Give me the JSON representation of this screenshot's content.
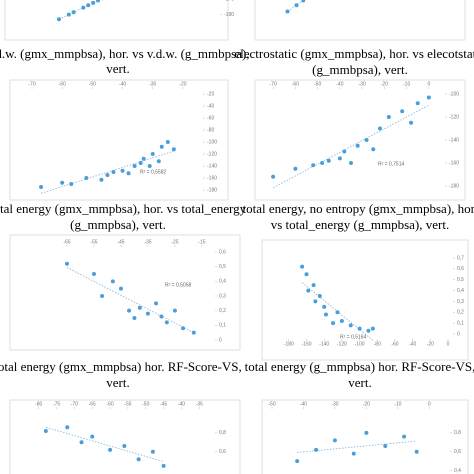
{
  "chart_data": [
    {
      "type": "scatter",
      "title": [
        "v.d.w. (gmx_mmpbsa), hor. vs v.d.w. (g_mmbpsa),",
        "vert."
      ],
      "x": [
        -52,
        -50,
        -49,
        -47,
        -46,
        -45,
        -44,
        -43,
        -42,
        -41
      ],
      "y": [
        -196,
        -190,
        -187,
        -181,
        -178,
        -175,
        -172,
        -169,
        -166,
        -163
      ],
      "xlim": [
        -60,
        -20
      ],
      "ylim": [
        -220,
        -120
      ],
      "xticks": [],
      "yticks": [
        -170,
        -190
      ],
      "color": "#4a9fd8",
      "trendline": true
    },
    {
      "type": "scatter",
      "title": [
        "electrostatic (gmx_mmpbsa), hor. vs elecotstatic",
        "(g_mmbpsa), vert."
      ],
      "x": [
        -70,
        -66,
        -63,
        -61,
        -60,
        -58,
        -57,
        -55,
        -54,
        -52
      ],
      "y": [
        -186,
        -178,
        -172,
        -168,
        -166,
        -162,
        -160,
        -156,
        -154,
        -150
      ],
      "xlim": [
        -80,
        0
      ],
      "ylim": [
        -220,
        -120
      ],
      "xticks": [],
      "yticks": [],
      "color": "#4a9fd8",
      "trendline": true
    },
    {
      "type": "scatter",
      "title": [
        "total energy (gmx_mmpbsa), hor. vs total_energy",
        "(g_mmpbsa), vert."
      ],
      "x": [
        -67,
        -60,
        -57,
        -52,
        -47,
        -45,
        -43,
        -40,
        -38,
        -36,
        -34,
        -33,
        -31,
        -30,
        -28,
        -27,
        -25,
        -23
      ],
      "y": [
        -175,
        -168,
        -170,
        -160,
        -163,
        -155,
        -150,
        -148,
        -152,
        -140,
        -135,
        -128,
        -140,
        -120,
        -132,
        -108,
        -100,
        -112
      ],
      "xlim": [
        -70,
        -15
      ],
      "ylim": [
        -180,
        -20
      ],
      "xticks": [
        -70,
        -60,
        -50,
        -40,
        -30,
        -20
      ],
      "yticks": [
        -20,
        -40,
        -60,
        -80,
        -100,
        -120,
        -140,
        -160,
        -180
      ],
      "annotation": "R² = 0,5582",
      "color": "#4a9fd8",
      "trendline": true
    },
    {
      "type": "scatter",
      "title": [
        "total energy, no entropy (gmx_mmpbsa), hor.",
        "vs total_energy (g_mmpbsa), vert."
      ],
      "x": [
        -70,
        -60,
        -52,
        -48,
        -45,
        -40,
        -38,
        -35,
        -32,
        -28,
        -25,
        -22,
        -18,
        -12,
        -8,
        -5,
        0
      ],
      "y": [
        -172,
        -165,
        -162,
        -160,
        -158,
        -156,
        -150,
        -160,
        -145,
        -140,
        -148,
        -130,
        -120,
        -115,
        -125,
        -108,
        -103
      ],
      "xlim": [
        -75,
        5
      ],
      "ylim": [
        -180,
        -100
      ],
      "xticks": [
        -70,
        -60,
        -50,
        -40,
        -30,
        -20,
        -10,
        0
      ],
      "yticks": [
        -100,
        -120,
        -140,
        -160,
        -180
      ],
      "annotation": "R² = 0,7514",
      "color": "#4a9fd8",
      "trendline": true
    },
    {
      "type": "scatter",
      "title": [
        "total energy (gmx_mmpbsa) hor. RF-Score-VS,",
        "vert."
      ],
      "x": [
        -65,
        -55,
        -52,
        -48,
        -45,
        -42,
        -40,
        -38,
        -35,
        -32,
        -30,
        -28,
        -25,
        -22,
        -18
      ],
      "y": [
        0.52,
        0.45,
        0.3,
        0.4,
        0.35,
        0.2,
        0.15,
        0.22,
        0.18,
        0.25,
        0.16,
        0.12,
        0.2,
        0.08,
        0.05
      ],
      "xlim": [
        -75,
        -12
      ],
      "ylim": [
        0,
        0.6
      ],
      "xticks": [
        -65,
        -55,
        -45,
        -35,
        -25,
        -15
      ],
      "yticks": [
        {
          "value": 0.6,
          "label": "0,6"
        },
        {
          "value": 0.5,
          "label": "0,5"
        },
        {
          "value": 0.4,
          "label": "0,4"
        },
        {
          "value": 0.3,
          "label": "0,3"
        },
        {
          "value": 0.2,
          "label": "0,2"
        },
        {
          "value": 0.1,
          "label": "0,1"
        },
        0
      ],
      "annotation": "R² = 0,5058",
      "color": "#4a9fd8",
      "trendline": true
    },
    {
      "type": "scatter",
      "title": [
        "total energy (g_mmpbsa) hor. RF-Score-VS,",
        "vert."
      ],
      "x": [
        -165,
        -160,
        -158,
        -152,
        -150,
        -145,
        -140,
        -138,
        -130,
        -125,
        -120,
        -110,
        -100,
        -90,
        -85
      ],
      "y": [
        0.62,
        0.55,
        0.4,
        0.45,
        0.3,
        0.35,
        0.25,
        0.18,
        0.1,
        0.2,
        0.12,
        0.08,
        0.05,
        0.03,
        0.05
      ],
      "xlim": [
        -190,
        0
      ],
      "ylim": [
        0,
        0.7
      ],
      "xticks": [
        -180,
        -160,
        -140,
        -120,
        -100,
        -80,
        -60,
        -40,
        -20,
        0
      ],
      "yticks": [
        {
          "value": 0.7,
          "label": "0,7"
        },
        {
          "value": 0.6,
          "label": "0,6"
        },
        {
          "value": 0.5,
          "label": "0,5"
        },
        {
          "value": 0.4,
          "label": "0,4"
        },
        {
          "value": 0.3,
          "label": "0,3"
        },
        {
          "value": 0.2,
          "label": "0,2"
        },
        {
          "value": 0.1,
          "label": "0,1"
        },
        0
      ],
      "annotation": "R² = 0,5164",
      "color": "#4a9fd8",
      "trendline": true
    },
    {
      "type": "scatter",
      "title": [],
      "x": [
        -78,
        -72,
        -68,
        -65,
        -60,
        -56,
        -52,
        -48,
        -45
      ],
      "y": [
        0.82,
        0.86,
        0.7,
        0.76,
        0.62,
        0.66,
        0.52,
        0.6,
        0.45
      ],
      "xlim": [
        -83,
        -32
      ],
      "ylim": [
        0.3,
        1
      ],
      "xticks": [
        -80,
        -75,
        -70,
        -65,
        -60,
        -55,
        -50,
        -45,
        -40,
        -35
      ],
      "yticks": [
        {
          "value": 0.8,
          "label": "0,8"
        },
        {
          "value": 0.6,
          "label": "0,6"
        }
      ],
      "color": "#4a9fd8",
      "trendline": true
    },
    {
      "type": "scatter",
      "title": [],
      "x": [
        -42,
        -36,
        -30,
        -24,
        -20,
        -14,
        -8,
        -4
      ],
      "y": [
        0.5,
        0.62,
        0.72,
        0.58,
        0.8,
        0.66,
        0.76,
        0.6
      ],
      "xlim": [
        -50,
        5
      ],
      "ylim": [
        0.3,
        1
      ],
      "xticks": [
        -50,
        -40,
        -30,
        -20,
        -10,
        0
      ],
      "yticks": [
        {
          "value": 0.8,
          "label": "0,8"
        },
        {
          "value": 0.6,
          "label": "0,6"
        },
        {
          "value": 0.4,
          "label": "0,4"
        }
      ],
      "color": "#4a9fd8",
      "trendline": true
    }
  ]
}
